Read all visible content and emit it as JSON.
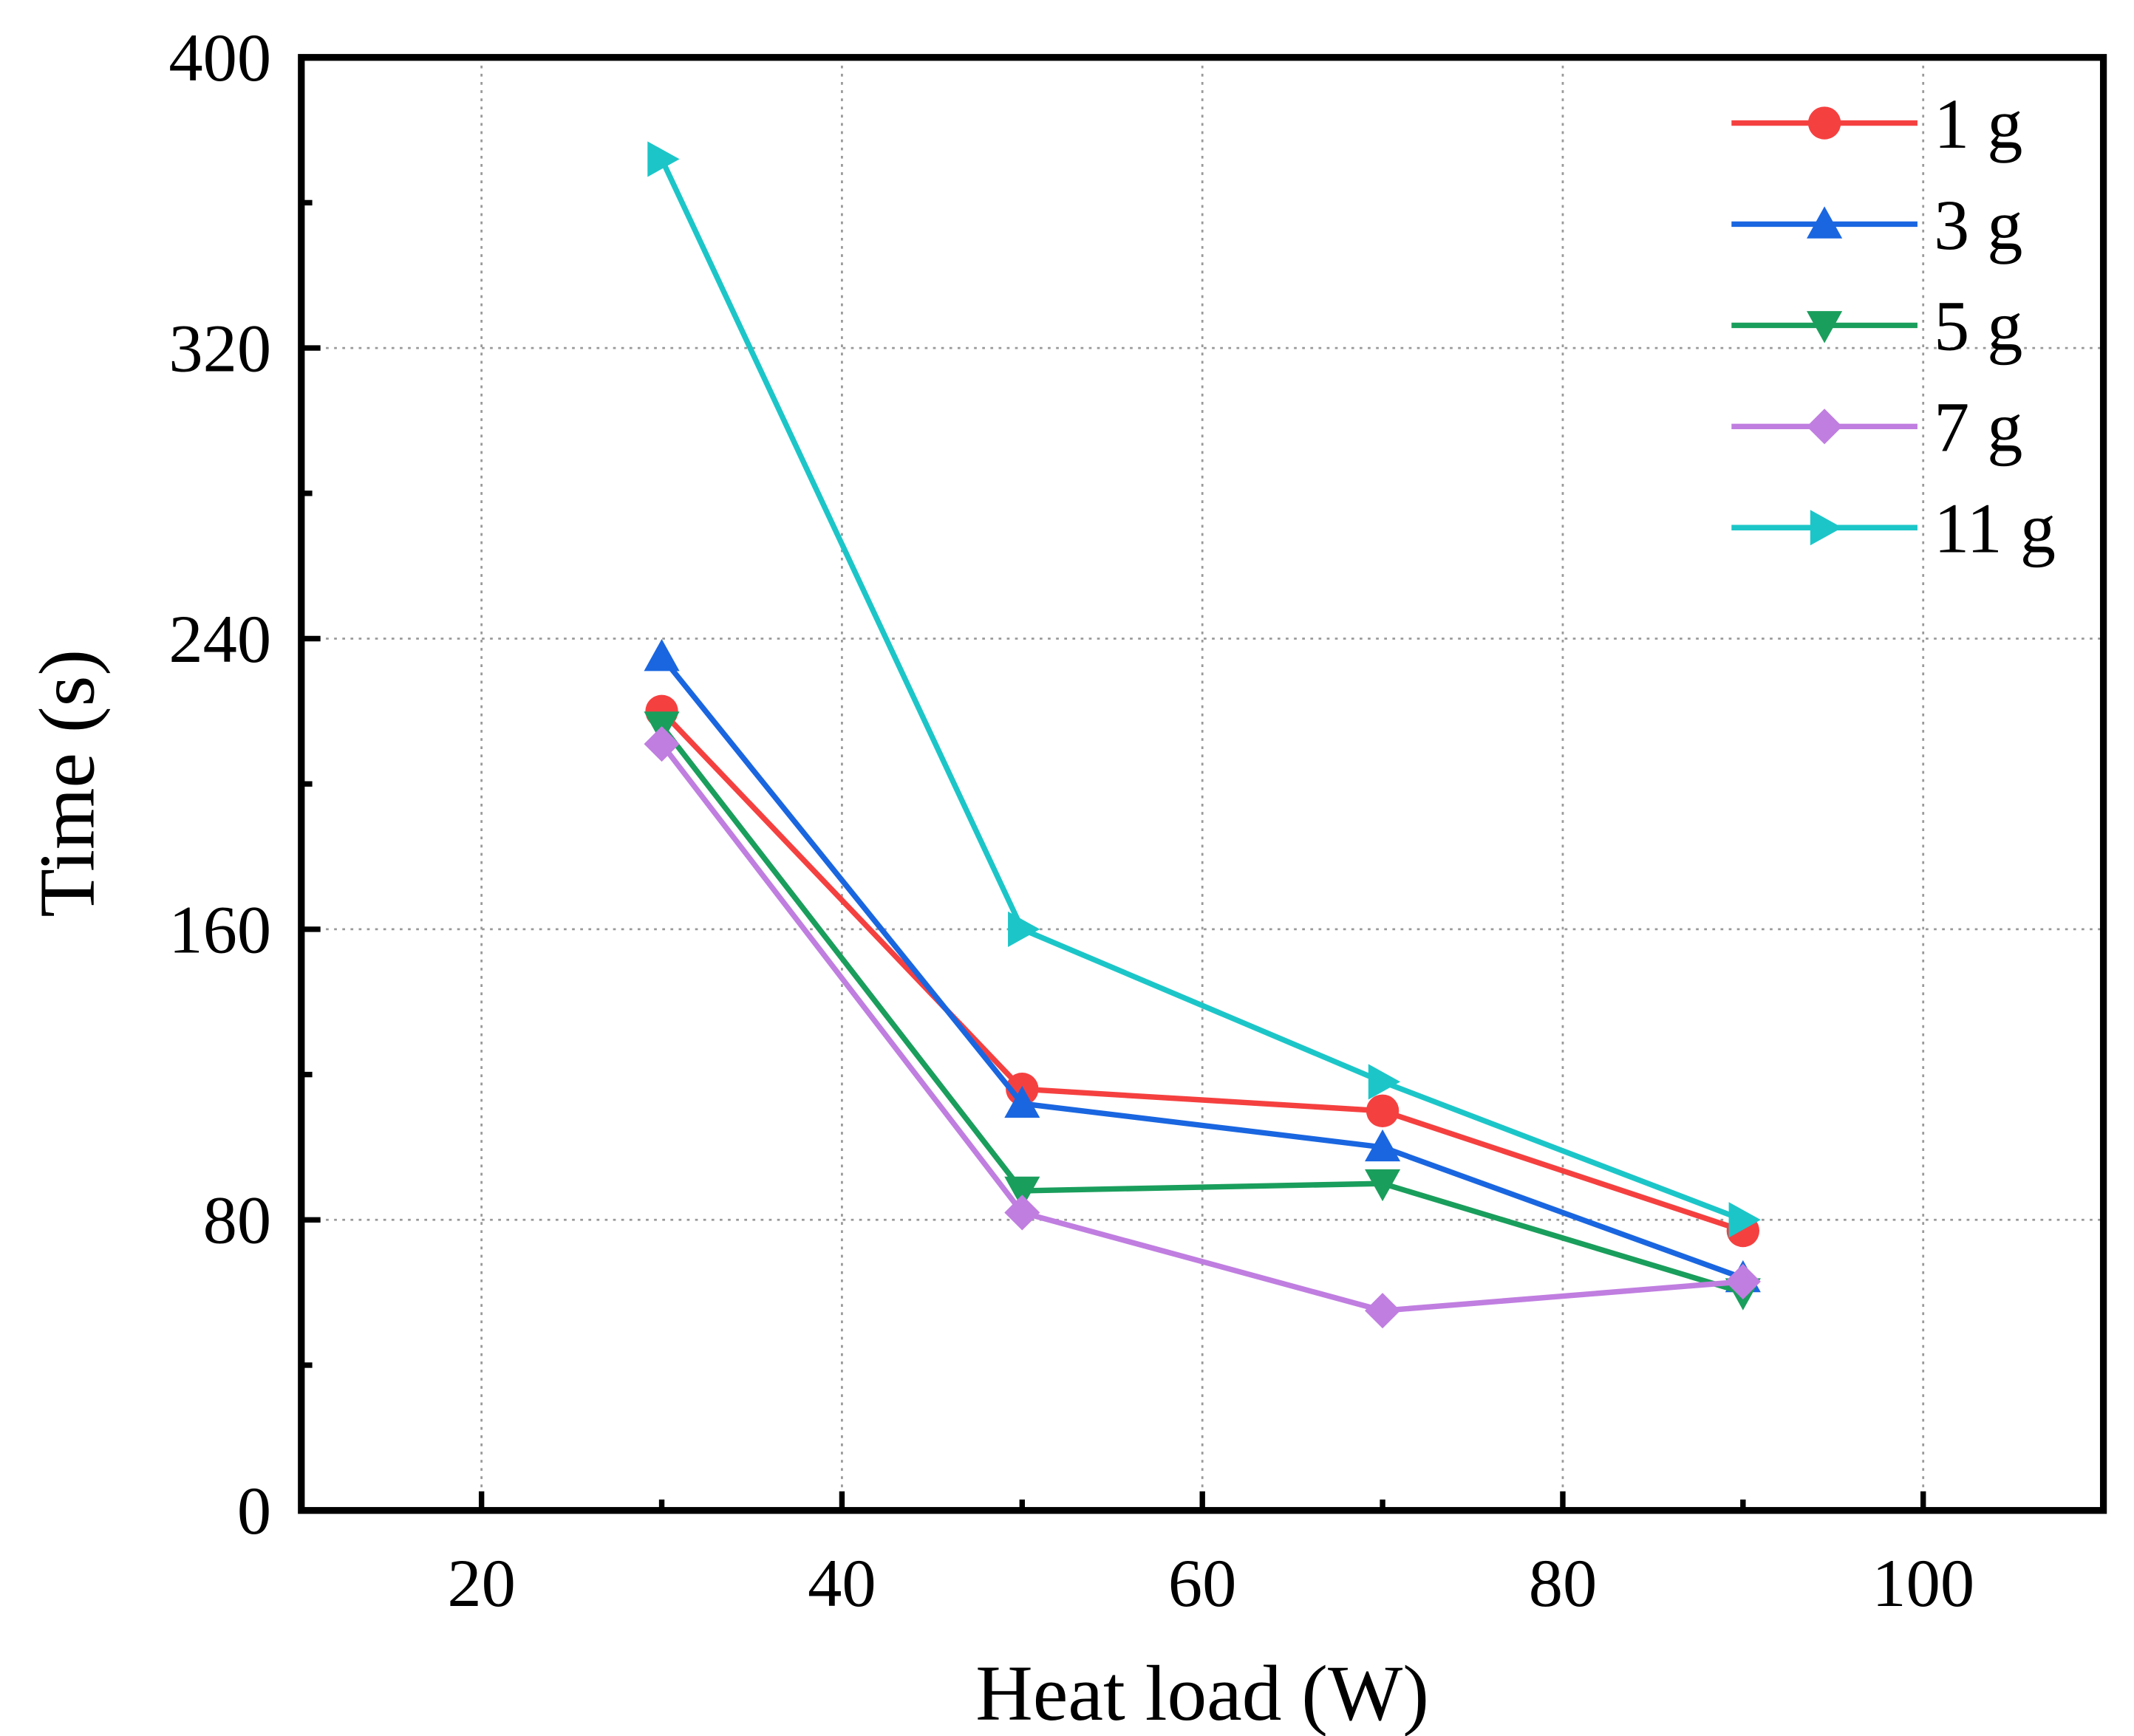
{
  "chart_data": {
    "type": "line",
    "title": "",
    "xlabel": "Heat load (W)",
    "ylabel": "Time (s)",
    "xlim": [
      10,
      110
    ],
    "ylim": [
      0,
      400
    ],
    "xticks": [
      20,
      40,
      60,
      80,
      100
    ],
    "yticks": [
      0,
      80,
      160,
      240,
      320,
      400
    ],
    "grid": true,
    "legend_position": "top-right",
    "x": [
      30,
      50,
      70,
      90
    ],
    "series": [
      {
        "name": "1 g",
        "marker": "circle",
        "color": "#f54040",
        "values": [
          220,
          116,
          110,
          77
        ]
      },
      {
        "name": "3 g",
        "marker": "triangle-up",
        "color": "#1a66e0",
        "values": [
          235,
          112,
          100,
          64
        ]
      },
      {
        "name": "5 g",
        "marker": "triangle-down",
        "color": "#1a9e5c",
        "values": [
          216,
          88,
          90,
          60
        ]
      },
      {
        "name": "7 g",
        "marker": "diamond",
        "color": "#c07ee0",
        "values": [
          211,
          82,
          55,
          63
        ]
      },
      {
        "name": "11 g",
        "marker": "triangle-right",
        "color": "#1cc6c8",
        "values": [
          372,
          160,
          118,
          80
        ]
      }
    ]
  }
}
